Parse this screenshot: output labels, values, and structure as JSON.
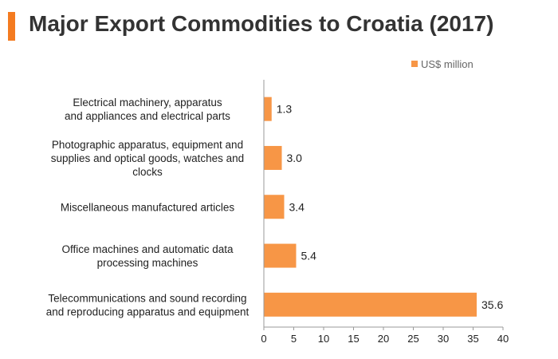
{
  "title": "Major Export Commodities to Croatia (2017)",
  "colors": {
    "accent": "#F47B20",
    "bar": "#F79646",
    "title_text": "#333333"
  },
  "chart_data": {
    "type": "bar",
    "orientation": "horizontal",
    "categories": [
      "Electrical machinery, apparatus and appliances and electrical parts",
      "Photographic apparatus, equipment and supplies and optical goods, watches and clocks",
      "Miscellaneous manufactured articles",
      "Office machines and automatic data processing machines",
      "Telecommunications and sound recording and reproducing apparatus and equipment"
    ],
    "category_label_lines": [
      [
        "Electrical machinery, apparatus",
        "and appliances and electrical parts"
      ],
      [
        "Photographic apparatus, equipment and",
        "supplies and optical goods, watches and",
        "clocks"
      ],
      [
        "Miscellaneous manufactured articles"
      ],
      [
        "Office machines and automatic data",
        "processing machines"
      ],
      [
        "Telecommunications and sound recording",
        "and reproducing apparatus and equipment"
      ]
    ],
    "values": [
      1.3,
      3.0,
      3.4,
      5.4,
      35.6
    ],
    "data_labels": [
      "1.3",
      "3.0",
      "3.4",
      "5.4",
      "35.6"
    ],
    "series": [
      {
        "name": "US$ million",
        "values": [
          1.3,
          3.0,
          3.4,
          5.4,
          35.6
        ]
      }
    ],
    "xlim": [
      0,
      40
    ],
    "xticks": [
      0,
      5,
      10,
      15,
      20,
      25,
      30,
      35,
      40
    ],
    "grid": false,
    "legend": "top-right"
  }
}
